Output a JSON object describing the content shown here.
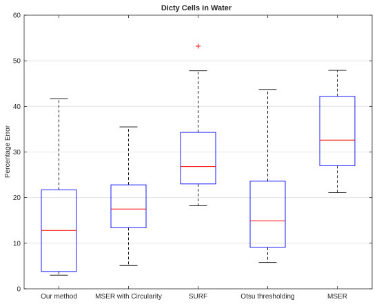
{
  "chart_data": {
    "type": "box",
    "title": "Dicty Cells in Water",
    "xlabel": "",
    "ylabel": "Percentage Error",
    "ylim": [
      0,
      60
    ],
    "yticks": [
      0,
      10,
      20,
      30,
      40,
      50,
      60
    ],
    "grid": "horizontal",
    "colors": {
      "box": "#0000ff",
      "median": "#ff0000",
      "whisker": "#000000",
      "outlier": "#ff0000",
      "grid": "#e0e0e0",
      "axis": "#262626"
    },
    "categories": [
      "Our method",
      "MSER with Circularity",
      "SURF",
      "Otsu thresholding",
      "MSER"
    ],
    "boxes": [
      {
        "label": "Our method",
        "whisker_low": 3.0,
        "q1": 3.8,
        "median": 12.8,
        "q3": 21.7,
        "whisker_high": 41.7,
        "outliers": []
      },
      {
        "label": "MSER with Circularity",
        "whisker_low": 5.1,
        "q1": 13.4,
        "median": 17.5,
        "q3": 22.8,
        "whisker_high": 35.5,
        "outliers": []
      },
      {
        "label": "SURF",
        "whisker_low": 18.2,
        "q1": 23.0,
        "median": 26.8,
        "q3": 34.3,
        "whisker_high": 47.8,
        "outliers": [
          53.2
        ]
      },
      {
        "label": "Otsu thresholding",
        "whisker_low": 5.8,
        "q1": 9.1,
        "median": 14.9,
        "q3": 23.6,
        "whisker_high": 43.7,
        "outliers": []
      },
      {
        "label": "MSER",
        "whisker_low": 21.1,
        "q1": 27.0,
        "median": 32.6,
        "q3": 42.2,
        "whisker_high": 47.9,
        "outliers": []
      }
    ]
  }
}
